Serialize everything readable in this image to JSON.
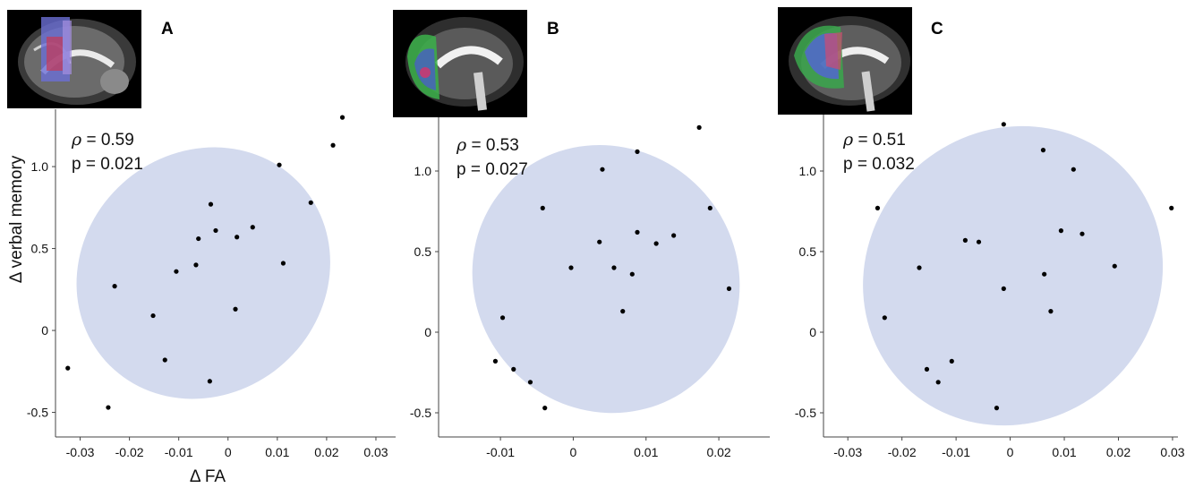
{
  "chart_data": [
    {
      "type": "scatter",
      "panel": "A",
      "annotation": {
        "rho_label": "ρ",
        "rho_value": "= 0.59",
        "p_text": "p = 0.021"
      },
      "xlabel": "Δ FA",
      "ylabel": "Δ verbal memory",
      "xlim": [
        -0.035,
        0.034
      ],
      "ylim": [
        -0.65,
        1.35
      ],
      "xticks": [
        -0.03,
        -0.02,
        -0.01,
        0,
        0.01,
        0.02,
        0.03
      ],
      "xtick_labels": [
        "-0.03",
        "-0.02",
        "-0.01",
        "0",
        "0.01",
        "0.02",
        "0.03"
      ],
      "yticks": [
        -0.5,
        0,
        0.5,
        1.0
      ],
      "ytick_labels": [
        "-0.5",
        "0",
        "0.5",
        "1.0"
      ],
      "ellipse": {
        "center": [
          -0.005,
          0.35
        ],
        "rx": 0.029,
        "ry": 0.59,
        "angle_deg": -42,
        "color": "#d3daee"
      },
      "points": [
        {
          "x": 0.0232,
          "y": 1.3
        },
        {
          "x": 0.0213,
          "y": 1.13
        },
        {
          "x": 0.0104,
          "y": 1.01
        },
        {
          "x": 0.0168,
          "y": 0.78
        },
        {
          "x": -0.0035,
          "y": 0.77
        },
        {
          "x": 0.005,
          "y": 0.63
        },
        {
          "x": -0.0025,
          "y": 0.61
        },
        {
          "x": -0.006,
          "y": 0.56
        },
        {
          "x": 0.0018,
          "y": 0.57
        },
        {
          "x": 0.0112,
          "y": 0.41
        },
        {
          "x": -0.0065,
          "y": 0.4
        },
        {
          "x": -0.0105,
          "y": 0.36
        },
        {
          "x": -0.023,
          "y": 0.27
        },
        {
          "x": 0.0015,
          "y": 0.13
        },
        {
          "x": -0.0152,
          "y": 0.09
        },
        {
          "x": -0.0128,
          "y": -0.18
        },
        {
          "x": -0.0325,
          "y": -0.23
        },
        {
          "x": -0.0037,
          "y": -0.31
        },
        {
          "x": -0.0243,
          "y": -0.47
        }
      ]
    },
    {
      "type": "scatter",
      "panel": "B",
      "annotation": {
        "rho_label": "ρ",
        "rho_value": "= 0.53",
        "p_text": "p = 0.027"
      },
      "xlabel": "",
      "ylabel": "",
      "xlim": [
        -0.0185,
        0.027
      ],
      "ylim": [
        -0.65,
        1.35
      ],
      "xticks": [
        -0.01,
        0,
        0.01,
        0.02
      ],
      "xtick_labels": [
        "-0.01",
        "0",
        "0.01",
        "0.02"
      ],
      "yticks": [
        -0.5,
        0,
        0.5,
        1.0
      ],
      "ytick_labels": [
        "-0.5",
        "0",
        "0.5",
        "1.0"
      ],
      "ellipse": {
        "center": [
          0.0045,
          0.33
        ],
        "rx": 0.0195,
        "ry": 0.68,
        "angle_deg": -44,
        "color": "#d3daee"
      },
      "points": [
        {
          "x": 0.0173,
          "y": 1.27
        },
        {
          "x": 0.0088,
          "y": 1.12
        },
        {
          "x": 0.004,
          "y": 1.01
        },
        {
          "x": 0.0188,
          "y": 0.77
        },
        {
          "x": -0.0042,
          "y": 0.77
        },
        {
          "x": 0.0088,
          "y": 0.62
        },
        {
          "x": 0.0138,
          "y": 0.6
        },
        {
          "x": 0.0036,
          "y": 0.56
        },
        {
          "x": 0.0114,
          "y": 0.55
        },
        {
          "x": -0.0003,
          "y": 0.4
        },
        {
          "x": 0.0056,
          "y": 0.4
        },
        {
          "x": 0.0081,
          "y": 0.36
        },
        {
          "x": 0.0214,
          "y": 0.27
        },
        {
          "x": 0.0068,
          "y": 0.13
        },
        {
          "x": -0.0097,
          "y": 0.09
        },
        {
          "x": -0.0107,
          "y": -0.18
        },
        {
          "x": -0.0082,
          "y": -0.23
        },
        {
          "x": -0.0059,
          "y": -0.31
        },
        {
          "x": -0.0039,
          "y": -0.47
        }
      ]
    },
    {
      "type": "scatter",
      "panel": "C",
      "annotation": {
        "rho_label": "ρ",
        "rho_value": "= 0.51",
        "p_text": "p = 0.032"
      },
      "xlabel": "",
      "ylabel": "",
      "xlim": [
        -0.0345,
        0.031
      ],
      "ylim": [
        -0.65,
        1.35
      ],
      "xticks": [
        -0.03,
        -0.02,
        -0.01,
        0,
        0.01,
        0.02,
        0.03
      ],
      "xtick_labels": [
        "-0.03",
        "-0.02",
        "-0.01",
        "0",
        "0.01",
        "0.02",
        "0.03"
      ],
      "yticks": [
        -0.5,
        0,
        0.5,
        1.0
      ],
      "ytick_labels": [
        "-0.5",
        "0",
        "0.5",
        "1.0"
      ],
      "ellipse": {
        "center": [
          0.0005,
          0.35
        ],
        "rx": 0.031,
        "ry": 0.72,
        "angle_deg": -44,
        "color": "#d3daee"
      },
      "points": [
        {
          "x": -0.0012,
          "y": 1.29
        },
        {
          "x": 0.0061,
          "y": 1.13
        },
        {
          "x": 0.0117,
          "y": 1.01
        },
        {
          "x": -0.0245,
          "y": 0.77
        },
        {
          "x": 0.0298,
          "y": 0.77
        },
        {
          "x": 0.0094,
          "y": 0.63
        },
        {
          "x": 0.0133,
          "y": 0.61
        },
        {
          "x": -0.0083,
          "y": 0.57
        },
        {
          "x": -0.0058,
          "y": 0.56
        },
        {
          "x": -0.0168,
          "y": 0.4
        },
        {
          "x": 0.0193,
          "y": 0.41
        },
        {
          "x": 0.0063,
          "y": 0.36
        },
        {
          "x": -0.0012,
          "y": 0.27
        },
        {
          "x": 0.0075,
          "y": 0.13
        },
        {
          "x": -0.0232,
          "y": 0.09
        },
        {
          "x": -0.0108,
          "y": -0.18
        },
        {
          "x": -0.0154,
          "y": -0.23
        },
        {
          "x": -0.0133,
          "y": -0.31
        },
        {
          "x": -0.0025,
          "y": -0.47
        }
      ]
    }
  ],
  "colors": {
    "ellipse_fill": "#d3daee",
    "point": "#000000",
    "axis": "#444444",
    "text": "#111111"
  }
}
